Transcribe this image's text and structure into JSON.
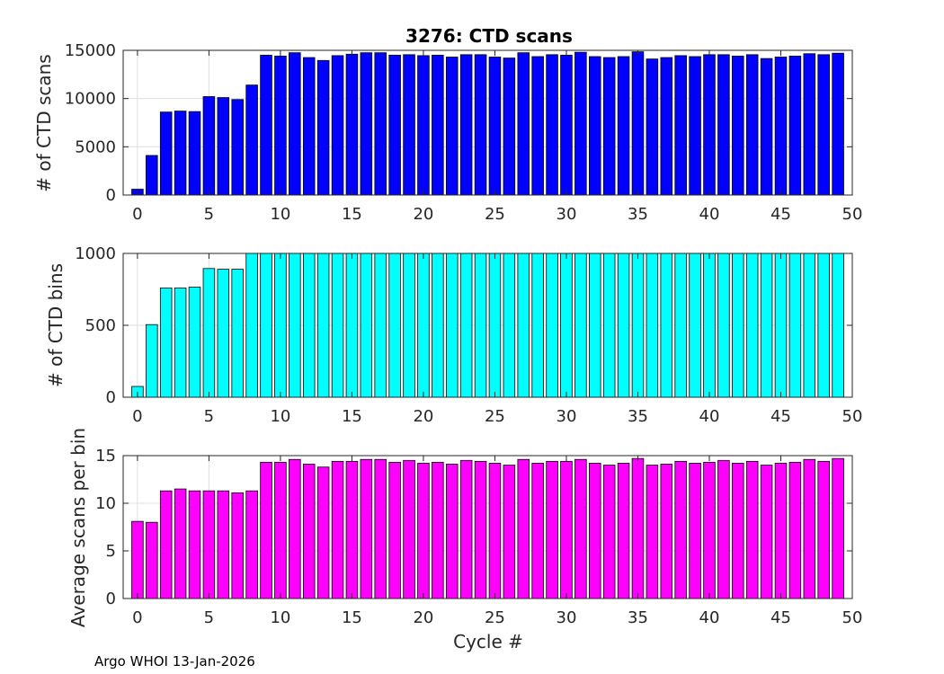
{
  "footer": "Argo WHOI 13-Jan-2026",
  "chart_data": [
    {
      "type": "bar",
      "title": "3276: CTD scans",
      "xlabel": "",
      "ylabel": "# of CTD scans",
      "color": "#0000ff",
      "xlim": [
        -1,
        50
      ],
      "ylim": [
        0,
        15000
      ],
      "xticks": [
        "0",
        "5",
        "10",
        "15",
        "20",
        "25",
        "30",
        "35",
        "40",
        "45",
        "50"
      ],
      "yticks": [
        "0",
        "5000",
        "10000",
        "15000"
      ],
      "grid": true,
      "x": [
        0,
        1,
        2,
        3,
        4,
        5,
        6,
        7,
        8,
        9,
        10,
        11,
        12,
        13,
        14,
        15,
        16,
        17,
        18,
        19,
        20,
        21,
        22,
        23,
        24,
        25,
        26,
        27,
        28,
        29,
        30,
        31,
        32,
        33,
        34,
        35,
        36,
        37,
        38,
        39,
        40,
        41,
        42,
        43,
        44,
        45,
        46,
        47,
        48,
        49
      ],
      "values": [
        600,
        4100,
        8600,
        8700,
        8650,
        10200,
        10100,
        9900,
        11400,
        14500,
        14400,
        14750,
        14250,
        13950,
        14450,
        14600,
        14750,
        14750,
        14500,
        14550,
        14450,
        14500,
        14300,
        14550,
        14550,
        14300,
        14200,
        14750,
        14350,
        14550,
        14500,
        14800,
        14350,
        14250,
        14350,
        14850,
        14100,
        14250,
        14450,
        14350,
        14550,
        14550,
        14400,
        14550,
        14150,
        14300,
        14400,
        14650,
        14550,
        14700
      ]
    },
    {
      "type": "bar",
      "title": "",
      "xlabel": "",
      "ylabel": "# of CTD bins",
      "color": "#00ffff",
      "xlim": [
        -1,
        50
      ],
      "ylim": [
        0,
        1000
      ],
      "xticks": [
        "0",
        "5",
        "10",
        "15",
        "20",
        "25",
        "30",
        "35",
        "40",
        "45",
        "50"
      ],
      "yticks": [
        "0",
        "500",
        "1000"
      ],
      "grid": true,
      "x": [
        0,
        1,
        2,
        3,
        4,
        5,
        6,
        7,
        8,
        9,
        10,
        11,
        12,
        13,
        14,
        15,
        16,
        17,
        18,
        19,
        20,
        21,
        22,
        23,
        24,
        25,
        26,
        27,
        28,
        29,
        30,
        31,
        32,
        33,
        34,
        35,
        36,
        37,
        38,
        39,
        40,
        41,
        42,
        43,
        44,
        45,
        46,
        47,
        48,
        49
      ],
      "values": [
        75,
        505,
        760,
        760,
        765,
        895,
        890,
        890,
        1010,
        1010,
        1010,
        1010,
        1010,
        1010,
        1005,
        1010,
        1010,
        1010,
        1010,
        1010,
        1005,
        1010,
        1010,
        1010,
        1010,
        1010,
        1010,
        1010,
        1010,
        1010,
        1010,
        1010,
        1010,
        1010,
        1010,
        1010,
        1010,
        1010,
        1005,
        1010,
        1010,
        1010,
        1010,
        1010,
        1010,
        1010,
        1010,
        1010,
        1010,
        1010
      ]
    },
    {
      "type": "bar",
      "title": "",
      "xlabel": "Cycle #",
      "ylabel": "Average scans per bin",
      "color": "#ff00ff",
      "xlim": [
        -1,
        50
      ],
      "ylim": [
        0,
        15
      ],
      "xticks": [
        "0",
        "5",
        "10",
        "15",
        "20",
        "25",
        "30",
        "35",
        "40",
        "45",
        "50"
      ],
      "yticks": [
        "0",
        "5",
        "10",
        "15"
      ],
      "grid": true,
      "x": [
        0,
        1,
        2,
        3,
        4,
        5,
        6,
        7,
        8,
        9,
        10,
        11,
        12,
        13,
        14,
        15,
        16,
        17,
        18,
        19,
        20,
        21,
        22,
        23,
        24,
        25,
        26,
        27,
        28,
        29,
        30,
        31,
        32,
        33,
        34,
        35,
        36,
        37,
        38,
        39,
        40,
        41,
        42,
        43,
        44,
        45,
        46,
        47,
        48,
        49
      ],
      "values": [
        8.1,
        8.0,
        11.3,
        11.5,
        11.3,
        11.3,
        11.3,
        11.1,
        11.3,
        14.3,
        14.3,
        14.6,
        14.1,
        13.8,
        14.4,
        14.4,
        14.6,
        14.6,
        14.3,
        14.5,
        14.2,
        14.3,
        14.1,
        14.5,
        14.4,
        14.2,
        14.0,
        14.6,
        14.2,
        14.4,
        14.4,
        14.6,
        14.2,
        14.0,
        14.2,
        14.7,
        14.0,
        14.1,
        14.4,
        14.2,
        14.3,
        14.5,
        14.2,
        14.4,
        14.0,
        14.2,
        14.3,
        14.6,
        14.4,
        14.7
      ]
    }
  ]
}
